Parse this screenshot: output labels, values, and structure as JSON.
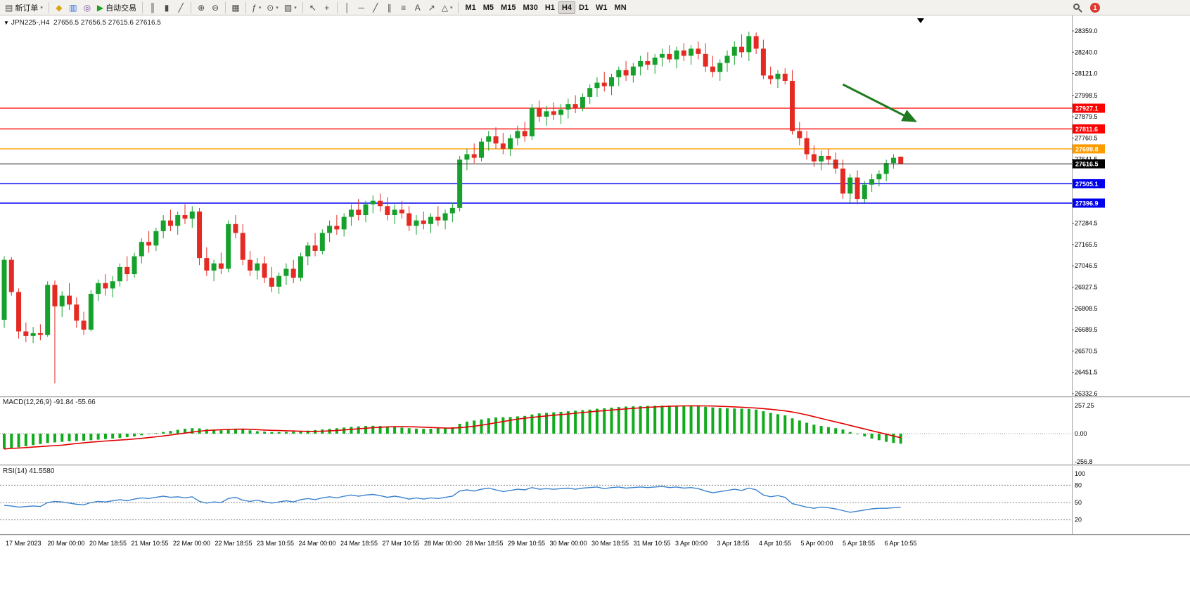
{
  "toolbar": {
    "notification_count": "1",
    "items": [
      {
        "name": "new-order-button",
        "glyph": "▤",
        "label": "新订单",
        "caret": true
      },
      {
        "divider": true
      },
      {
        "name": "market-watch-button",
        "glyph": "◆",
        "color": "#d9a514"
      },
      {
        "name": "data-window-button",
        "glyph": "▥",
        "color": "#3b6fd4"
      },
      {
        "name": "navigator-button",
        "glyph": "◎",
        "color": "#7a51a8"
      },
      {
        "name": "autotrade-button",
        "glyph": "▶",
        "label": "自动交易",
        "color": "#1fa11f"
      },
      {
        "divider": true
      },
      {
        "name": "bar-chart-button",
        "glyph": "║"
      },
      {
        "name": "candlestick-chart-button",
        "glyph": "▮"
      },
      {
        "name": "line-chart-button",
        "glyph": "╱"
      },
      {
        "divider": true
      },
      {
        "name": "zoom-in-button",
        "glyph": "⊕"
      },
      {
        "name": "zoom-out-button",
        "glyph": "⊖"
      },
      {
        "divider": true
      },
      {
        "name": "tile-windows-button",
        "glyph": "▦"
      },
      {
        "divider": true
      },
      {
        "name": "insert-indicator-button",
        "glyph": "ƒ",
        "caret": true
      },
      {
        "name": "period-button",
        "glyph": "⊙",
        "caret": true
      },
      {
        "name": "template-button",
        "glyph": "▧",
        "caret": true
      },
      {
        "divider": true
      },
      {
        "name": "cursor-button",
        "glyph": "↖"
      },
      {
        "name": "crosshair-button",
        "glyph": "+"
      },
      {
        "divider": true
      },
      {
        "name": "vertical-line-button",
        "glyph": "│"
      },
      {
        "name": "horizontal-line-button",
        "glyph": "─"
      },
      {
        "name": "trendline-button",
        "glyph": "╱"
      },
      {
        "name": "channel-button",
        "glyph": "∥"
      },
      {
        "name": "fibonacci-button",
        "glyph": "≡"
      },
      {
        "name": "text-button",
        "glyph": "A"
      },
      {
        "name": "label-button",
        "glyph": "↗"
      },
      {
        "name": "shapes-button",
        "glyph": "△",
        "caret": true
      },
      {
        "divider": true
      },
      {
        "name": "tf-m1-button",
        "label": "M1",
        "tf": true
      },
      {
        "name": "tf-m5-button",
        "label": "M5",
        "tf": true
      },
      {
        "name": "tf-m15-button",
        "label": "M15",
        "tf": true
      },
      {
        "name": "tf-m30-button",
        "label": "M30",
        "tf": true
      },
      {
        "name": "tf-h1-button",
        "label": "H1",
        "tf": true
      },
      {
        "name": "tf-h4-button",
        "label": "H4",
        "tf": true,
        "active": true
      },
      {
        "name": "tf-d1-button",
        "label": "D1",
        "tf": true
      },
      {
        "name": "tf-w1-button",
        "label": "W1",
        "tf": true
      },
      {
        "name": "tf-mn-button",
        "label": "MN",
        "tf": true
      }
    ]
  },
  "chart": {
    "header": "JPN225-,H4  27656.5 27656.5 27615.6 27616.5"
  },
  "chart_data": {
    "type": "candlestick",
    "symbol": "JPN225-",
    "timeframe": "H4",
    "ohlc_header": {
      "open": "27656.5",
      "high": "27656.5",
      "low": "27615.6",
      "close": "27616.5"
    },
    "candle_colors": {
      "up": "#16a12c",
      "down": "#e42a22"
    },
    "price_axis": {
      "labels": [
        "28359.0",
        "28240.0",
        "28121.0",
        "27998.5",
        "27879.5",
        "27760.5",
        "27641.5",
        "27284.5",
        "27165.5",
        "27046.5",
        "26927.5",
        "26808.5",
        "26689.5",
        "26570.5",
        "26451.5",
        "26332.6"
      ],
      "min": 26332.6,
      "max": 28359.0
    },
    "time_labels": [
      "17 Mar 2023",
      "20 Mar 00:00",
      "20 Mar 18:55",
      "21 Mar 10:55",
      "22 Mar 00:00",
      "22 Mar 18:55",
      "23 Mar 10:55",
      "24 Mar 00:00",
      "24 Mar 18:55",
      "27 Mar 10:55",
      "28 Mar 00:00",
      "28 Mar 18:55",
      "29 Mar 10:55",
      "30 Mar 00:00",
      "30 Mar 18:55",
      "31 Mar 10:55",
      "3 Apr 00:00",
      "3 Apr 18:55",
      "4 Apr 10:55",
      "5 Apr 00:00",
      "5 Apr 18:55",
      "6 Apr 10:55"
    ],
    "horizontal_lines": [
      {
        "value": 27927.1,
        "label": "27927.1",
        "color": "#ff0000"
      },
      {
        "value": 27811.6,
        "label": "27811.6",
        "color": "#ff0000"
      },
      {
        "value": 27699.8,
        "label": "27699.8",
        "color": "#ff9c00"
      },
      {
        "value": 27505.1,
        "label": "27505.1",
        "color": "#0000ee"
      },
      {
        "value": 27396.9,
        "label": "27396.9",
        "color": "#0000ee"
      }
    ],
    "current_price": {
      "value": 27616.5,
      "label": "27616.5",
      "color": "#000000"
    },
    "arrow_annotation": {
      "from_bar": 116,
      "from_price": 28060,
      "to_bar": 126,
      "to_price": 27855,
      "color": "#1f7a1f"
    },
    "candles": [
      [
        26745,
        27100,
        26700,
        27080
      ],
      [
        27080,
        27095,
        26880,
        26900
      ],
      [
        26900,
        26920,
        26640,
        26680
      ],
      [
        26680,
        26730,
        26620,
        26655
      ],
      [
        26655,
        26705,
        26615,
        26670
      ],
      [
        26670,
        26720,
        26630,
        26660
      ],
      [
        26660,
        26960,
        26650,
        26940
      ],
      [
        26940,
        26965,
        26390,
        26820
      ],
      [
        26820,
        26905,
        26760,
        26880
      ],
      [
        26880,
        26950,
        26800,
        26830
      ],
      [
        26830,
        26870,
        26700,
        26740
      ],
      [
        26740,
        26790,
        26660,
        26690
      ],
      [
        26690,
        26910,
        26680,
        26890
      ],
      [
        26890,
        26970,
        26850,
        26950
      ],
      [
        26950,
        27000,
        26880,
        26920
      ],
      [
        26920,
        26990,
        26870,
        26960
      ],
      [
        26960,
        27060,
        26930,
        27040
      ],
      [
        27040,
        27100,
        26960,
        27000
      ],
      [
        27000,
        27120,
        26980,
        27100
      ],
      [
        27100,
        27200,
        27060,
        27180
      ],
      [
        27180,
        27240,
        27120,
        27160
      ],
      [
        27160,
        27260,
        27130,
        27240
      ],
      [
        27240,
        27330,
        27200,
        27300
      ],
      [
        27300,
        27360,
        27240,
        27270
      ],
      [
        27270,
        27350,
        27220,
        27330
      ],
      [
        27330,
        27390,
        27280,
        27310
      ],
      [
        27310,
        27380,
        27260,
        27350
      ],
      [
        27350,
        27370,
        27050,
        27090
      ],
      [
        27090,
        27150,
        26990,
        27020
      ],
      [
        27020,
        27080,
        26960,
        27060
      ],
      [
        27060,
        27120,
        27000,
        27030
      ],
      [
        27030,
        27300,
        27010,
        27280
      ],
      [
        27280,
        27330,
        27200,
        27230
      ],
      [
        27230,
        27280,
        27050,
        27080
      ],
      [
        27080,
        27130,
        26990,
        27020
      ],
      [
        27020,
        27090,
        26970,
        27060
      ],
      [
        27060,
        27100,
        26950,
        26980
      ],
      [
        26980,
        27040,
        26900,
        26930
      ],
      [
        26930,
        27010,
        26890,
        26990
      ],
      [
        26990,
        27060,
        26940,
        27030
      ],
      [
        27030,
        27080,
        26950,
        26980
      ],
      [
        26980,
        27120,
        26960,
        27100
      ],
      [
        27100,
        27180,
        27050,
        27160
      ],
      [
        27160,
        27230,
        27100,
        27130
      ],
      [
        27130,
        27250,
        27110,
        27230
      ],
      [
        27230,
        27300,
        27180,
        27270
      ],
      [
        27270,
        27330,
        27220,
        27250
      ],
      [
        27250,
        27340,
        27210,
        27320
      ],
      [
        27320,
        27390,
        27270,
        27360
      ],
      [
        27360,
        27420,
        27300,
        27330
      ],
      [
        27330,
        27410,
        27290,
        27390
      ],
      [
        27390,
        27440,
        27340,
        27410
      ],
      [
        27410,
        27450,
        27350,
        27380
      ],
      [
        27380,
        27430,
        27300,
        27330
      ],
      [
        27330,
        27390,
        27280,
        27360
      ],
      [
        27360,
        27410,
        27310,
        27340
      ],
      [
        27340,
        27380,
        27240,
        27270
      ],
      [
        27270,
        27330,
        27220,
        27300
      ],
      [
        27300,
        27350,
        27250,
        27280
      ],
      [
        27280,
        27340,
        27230,
        27320
      ],
      [
        27320,
        27380,
        27270,
        27300
      ],
      [
        27300,
        27360,
        27250,
        27340
      ],
      [
        27340,
        27400,
        27290,
        27370
      ],
      [
        27370,
        27660,
        27350,
        27640
      ],
      [
        27640,
        27700,
        27580,
        27670
      ],
      [
        27670,
        27730,
        27620,
        27650
      ],
      [
        27650,
        27760,
        27630,
        27740
      ],
      [
        27740,
        27800,
        27690,
        27770
      ],
      [
        27770,
        27820,
        27700,
        27730
      ],
      [
        27730,
        27790,
        27670,
        27700
      ],
      [
        27700,
        27780,
        27660,
        27760
      ],
      [
        27760,
        27830,
        27720,
        27800
      ],
      [
        27800,
        27850,
        27740,
        27770
      ],
      [
        27770,
        27950,
        27750,
        27930
      ],
      [
        27930,
        27970,
        27850,
        27880
      ],
      [
        27880,
        27940,
        27830,
        27910
      ],
      [
        27910,
        27960,
        27860,
        27890
      ],
      [
        27890,
        27950,
        27840,
        27920
      ],
      [
        27920,
        27980,
        27870,
        27950
      ],
      [
        27950,
        28000,
        27900,
        27930
      ],
      [
        27930,
        28010,
        27910,
        27990
      ],
      [
        27990,
        28060,
        27950,
        28040
      ],
      [
        28040,
        28100,
        27990,
        28070
      ],
      [
        28070,
        28130,
        28020,
        28050
      ],
      [
        28050,
        28120,
        28000,
        28100
      ],
      [
        28100,
        28160,
        28050,
        28140
      ],
      [
        28140,
        28190,
        28080,
        28110
      ],
      [
        28110,
        28180,
        28070,
        28160
      ],
      [
        28160,
        28220,
        28110,
        28190
      ],
      [
        28190,
        28240,
        28140,
        28170
      ],
      [
        28170,
        28230,
        28120,
        28210
      ],
      [
        28210,
        28260,
        28160,
        28230
      ],
      [
        28230,
        28280,
        28180,
        28200
      ],
      [
        28200,
        28270,
        28150,
        28250
      ],
      [
        28250,
        28290,
        28190,
        28220
      ],
      [
        28220,
        28280,
        28170,
        28260
      ],
      [
        28260,
        28300,
        28200,
        28230
      ],
      [
        28230,
        28290,
        28130,
        28160
      ],
      [
        28160,
        28220,
        28100,
        28130
      ],
      [
        28130,
        28200,
        28080,
        28180
      ],
      [
        28180,
        28250,
        28130,
        28220
      ],
      [
        28220,
        28300,
        28170,
        28270
      ],
      [
        28270,
        28340,
        28210,
        28240
      ],
      [
        28240,
        28355,
        28190,
        28330
      ],
      [
        28330,
        28350,
        28230,
        28260
      ],
      [
        28260,
        28310,
        28090,
        28110
      ],
      [
        28110,
        28160,
        28060,
        28090
      ],
      [
        28090,
        28140,
        28040,
        28120
      ],
      [
        28120,
        28150,
        28060,
        28080
      ],
      [
        28080,
        28140,
        27780,
        27800
      ],
      [
        27800,
        27850,
        27720,
        27760
      ],
      [
        27760,
        27800,
        27640,
        27670
      ],
      [
        27670,
        27720,
        27600,
        27630
      ],
      [
        27630,
        27690,
        27580,
        27660
      ],
      [
        27660,
        27700,
        27610,
        27640
      ],
      [
        27640,
        27680,
        27560,
        27590
      ],
      [
        27590,
        27640,
        27420,
        27450
      ],
      [
        27450,
        27560,
        27400,
        27540
      ],
      [
        27540,
        27580,
        27390,
        27420
      ],
      [
        27420,
        27520,
        27400,
        27500
      ],
      [
        27500,
        27560,
        27460,
        27530
      ],
      [
        27530,
        27580,
        27490,
        27560
      ],
      [
        27560,
        27640,
        27520,
        27620
      ],
      [
        27620,
        27670,
        27590,
        27650
      ],
      [
        27656.5,
        27656.5,
        27615.6,
        27616.5
      ]
    ],
    "macd": {
      "label": "MACD(12,26,9) -91.84 -55.66",
      "axis_labels": [
        "257.25",
        "0.00",
        "-256.8"
      ],
      "axis_max": 257.25,
      "axis_min": -256.8,
      "hist_color": "#12ab1e",
      "signal_color": "#e00000",
      "values": [
        -140,
        -130,
        -125,
        -115,
        -105,
        -95,
        -85,
        -80,
        -75,
        -70,
        -68,
        -65,
        -60,
        -55,
        -50,
        -45,
        -40,
        -32,
        -25,
        -15,
        -5,
        5,
        15,
        25,
        35,
        45,
        50,
        48,
        40,
        35,
        30,
        38,
        45,
        40,
        30,
        22,
        18,
        15,
        14,
        16,
        18,
        22,
        28,
        33,
        38,
        44,
        50,
        56,
        62,
        66,
        70,
        72,
        70,
        65,
        60,
        55,
        50,
        46,
        44,
        45,
        48,
        52,
        58,
        90,
        110,
        120,
        130,
        140,
        148,
        150,
        152,
        158,
        162,
        175,
        185,
        190,
        195,
        200,
        205,
        210,
        215,
        220,
        228,
        232,
        238,
        244,
        248,
        250,
        252,
        254,
        255,
        256,
        257,
        257,
        256,
        255,
        252,
        246,
        240,
        235,
        232,
        230,
        228,
        226,
        220,
        205,
        190,
        178,
        168,
        140,
        120,
        100,
        82,
        70,
        60,
        50,
        38,
        15,
        -5,
        -25,
        -45,
        -60,
        -75,
        -85,
        -91.84
      ]
    },
    "rsi": {
      "label": "RSI(14) 41.5580",
      "axis_labels": [
        "100",
        "80",
        "50",
        "20"
      ],
      "levels": [
        80,
        50,
        20
      ],
      "color": "#3a82cc",
      "values": [
        45,
        44,
        42,
        43,
        44,
        43,
        50,
        52,
        51,
        49,
        47,
        46,
        50,
        52,
        51,
        53,
        55,
        53,
        56,
        58,
        57,
        59,
        61,
        59,
        60,
        58,
        60,
        52,
        49,
        51,
        50,
        57,
        59,
        54,
        52,
        54,
        51,
        49,
        51,
        53,
        51,
        55,
        57,
        55,
        58,
        60,
        58,
        61,
        63,
        61,
        63,
        64,
        62,
        59,
        61,
        59,
        56,
        58,
        56,
        58,
        57,
        59,
        61,
        70,
        72,
        70,
        73,
        75,
        72,
        69,
        71,
        73,
        72,
        76,
        73,
        74,
        73,
        74,
        75,
        73,
        75,
        76,
        77,
        74,
        76,
        77,
        75,
        76,
        77,
        76,
        77,
        78,
        76,
        77,
        75,
        76,
        74,
        70,
        67,
        69,
        71,
        73,
        71,
        75,
        72,
        63,
        60,
        62,
        59,
        48,
        45,
        42,
        40,
        42,
        41,
        39,
        36,
        33,
        35,
        37,
        39,
        40,
        40,
        41,
        41.56
      ]
    }
  }
}
